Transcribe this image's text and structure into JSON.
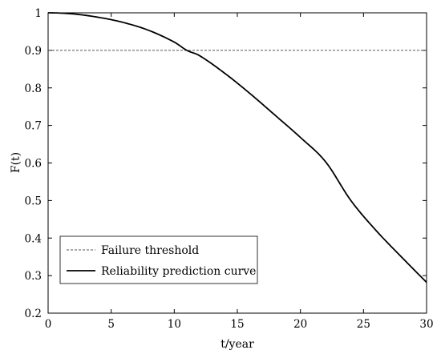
{
  "chart_data": {
    "type": "line",
    "title": "",
    "xlabel": "t/year",
    "ylabel": "F(t)",
    "xlim": [
      0,
      30
    ],
    "ylim": [
      0.2,
      1
    ],
    "x_ticks": [
      0,
      5,
      10,
      15,
      20,
      25,
      30
    ],
    "y_ticks": [
      0.2,
      0.3,
      0.4,
      0.5,
      0.6,
      0.7,
      0.8,
      0.9,
      1
    ],
    "x_tick_labels": [
      "0",
      "5",
      "10",
      "15",
      "20",
      "25",
      "30"
    ],
    "y_tick_labels": [
      "0.2",
      "0.3",
      "0.4",
      "0.5",
      "0.6",
      "0.7",
      "0.8",
      "0.9",
      "1"
    ],
    "grid": false,
    "legend_position": "bottom-left",
    "series": [
      {
        "name": "Failure threshold",
        "style": "dashed",
        "color": "#555555",
        "x": [
          0,
          30
        ],
        "y": [
          0.9,
          0.9
        ]
      },
      {
        "name": "Reliability prediction curve",
        "style": "solid",
        "color": "#000000",
        "x": [
          0,
          2,
          4,
          6,
          8,
          10,
          11,
          12,
          14,
          16,
          18,
          20,
          22,
          24,
          26,
          28,
          30
        ],
        "y": [
          1.0,
          0.997,
          0.988,
          0.974,
          0.953,
          0.922,
          0.9,
          0.886,
          0.839,
          0.785,
          0.727,
          0.668,
          0.603,
          0.5,
          0.42,
          0.35,
          0.282
        ]
      }
    ]
  }
}
